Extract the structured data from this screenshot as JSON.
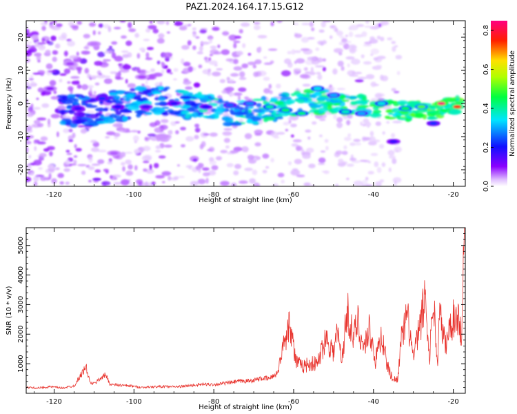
{
  "title": "PAZ1.2024.164.17.15.G12",
  "colors": {
    "snr_line": "#e8312b",
    "frame": "#000000",
    "background": "#ffffff"
  },
  "chart_data": [
    {
      "type": "heatmap",
      "title": "PAZ1.2024.164.17.15.G12",
      "xlabel": "Height of straight line (km)",
      "ylabel": "Frequency (Hz)",
      "xlim": [
        -127,
        -17
      ],
      "ylim": [
        -25,
        25
      ],
      "x_ticks": [
        -120,
        -100,
        -80,
        -60,
        -40,
        -20
      ],
      "y_ticks": [
        -20,
        -10,
        0,
        10,
        20
      ],
      "colorbar": {
        "label": "Normalized spectral amplitude",
        "range": [
          0,
          0.85
        ],
        "ticks": [
          0.0,
          0.2,
          0.4,
          0.6,
          0.8
        ],
        "colormap": "hsv-rainbow (white at 0, violet, blue, cyan, green, yellow, red, magenta)"
      },
      "features": [
        {
          "x": -121,
          "y": 4.5,
          "v": 0.1
        },
        {
          "x": -116,
          "y": 12,
          "v": 0.08
        },
        {
          "x": -110,
          "y": 18,
          "v": 0.06
        },
        {
          "x": -105,
          "y": -15,
          "v": 0.07
        },
        {
          "x": -98,
          "y": 8,
          "v": 0.08
        },
        {
          "x": -93,
          "y": -10,
          "v": 0.05
        },
        {
          "x": -114,
          "y": -1.5,
          "v": 0.18
        },
        {
          "x": -108,
          "y": 1.5,
          "v": 0.22
        },
        {
          "x": -104,
          "y": -1,
          "v": 0.2
        },
        {
          "x": -97,
          "y": -1,
          "v": 0.17
        },
        {
          "x": -90,
          "y": 0,
          "v": 0.19
        },
        {
          "x": -82,
          "y": -1,
          "v": 0.2
        },
        {
          "x": -76,
          "y": -0.5,
          "v": 0.25
        },
        {
          "x": -71,
          "y": 0,
          "v": 0.28
        },
        {
          "x": -66,
          "y": -1,
          "v": 0.4
        },
        {
          "x": -62,
          "y": -2,
          "v": 0.44
        },
        {
          "x": -58,
          "y": -3,
          "v": 0.42
        },
        {
          "x": -54,
          "y": 4.5,
          "v": 0.35
        },
        {
          "x": -50,
          "y": 2.5,
          "v": 0.3
        },
        {
          "x": -47,
          "y": -2.5,
          "v": 0.38
        },
        {
          "x": -43,
          "y": -3,
          "v": 0.3
        },
        {
          "x": -38,
          "y": 0,
          "v": 0.36
        },
        {
          "x": -35,
          "y": -11.5,
          "v": 0.18
        },
        {
          "x": -32,
          "y": -1.5,
          "v": 0.45
        },
        {
          "x": -28,
          "y": -1,
          "v": 0.5
        },
        {
          "x": -25,
          "y": -6,
          "v": 0.22
        },
        {
          "x": -23,
          "y": 0,
          "v": 0.85
        },
        {
          "x": -19,
          "y": -1,
          "v": 0.75
        }
      ]
    },
    {
      "type": "line",
      "xlabel": "Height of straight line (km)",
      "ylabel": "SNR (10 * v/v)",
      "xlim": [
        -127,
        -17
      ],
      "ylim": [
        0,
        5600
      ],
      "x_ticks": [
        -120,
        -100,
        -80,
        -60,
        -40,
        -20
      ],
      "y_ticks": [
        1000,
        2000,
        3000,
        4000,
        5000
      ],
      "series": [
        {
          "x": [
            -127,
            -124,
            -121,
            -118,
            -115,
            -112,
            -111,
            -110,
            -108,
            -107,
            -106,
            -104,
            -101,
            -98,
            -95,
            -92,
            -89,
            -86,
            -83,
            -80,
            -77,
            -74,
            -71,
            -68,
            -66,
            -64,
            -62.5,
            -61,
            -59.5,
            -58,
            -56,
            -54,
            -52,
            -50,
            -49,
            -48,
            -46.5,
            -45,
            -44,
            -42.5,
            -41,
            -39.5,
            -38,
            -36.5,
            -35,
            -34,
            -33,
            -31.5,
            -30,
            -28,
            -27,
            -26,
            -25,
            -24,
            -23.5,
            -22,
            -20.5,
            -19,
            -18,
            -17.2
          ],
          "y": [
            200,
            180,
            220,
            180,
            250,
            900,
            350,
            320,
            550,
            620,
            300,
            280,
            250,
            200,
            220,
            230,
            220,
            260,
            300,
            300,
            340,
            400,
            420,
            500,
            500,
            700,
            1700,
            2500,
            1100,
            900,
            1000,
            1000,
            1900,
            1400,
            2100,
            1100,
            2800,
            1800,
            2500,
            1500,
            2200,
            1100,
            2000,
            900,
            450,
            500,
            1800,
            2600,
            1200,
            2500,
            3350,
            1100,
            3300,
            900,
            2700,
            1600,
            2400,
            2700,
            2000,
            5600
          ]
        }
      ]
    }
  ]
}
